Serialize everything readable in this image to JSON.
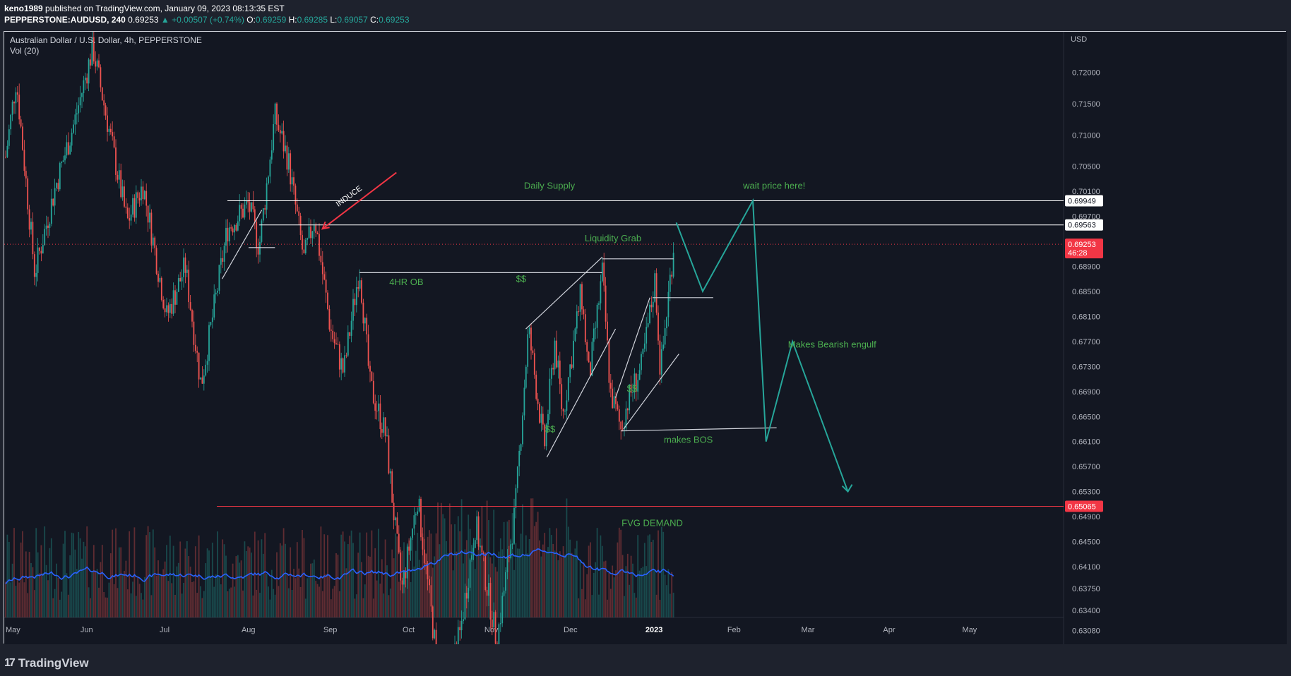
{
  "header": {
    "published_by": "keno1989",
    "published_text": "published on TradingView.com, January 09, 2023 08:13:35 EST",
    "symbol": "PEPPERSTONE:AUDUSD, 240",
    "last": "0.69253",
    "change": "▲ +0.00507 (+0.74%)",
    "o_label": "O:",
    "o_val": "0.69259",
    "h_label": "H:",
    "h_val": "0.69285",
    "l_label": "L:",
    "l_val": "0.69057",
    "c_label": "C:",
    "c_val": "0.69253"
  },
  "footer": {
    "brand": "TradingView",
    "logo": "17"
  },
  "chart_data": {
    "type": "candlestick",
    "title": "Australian Dollar / U.S. Dollar, 4h, PEPPERSTONE",
    "indicator": "Vol (20)",
    "currency": "USD",
    "ylim": [
      0.6295,
      0.7265
    ],
    "y_ticks": [
      "0.72000",
      "0.71500",
      "0.71000",
      "0.70500",
      "0.70100",
      "0.69700",
      "0.69300",
      "0.68900",
      "0.68500",
      "0.68100",
      "0.67700",
      "0.67300",
      "0.66900",
      "0.66500",
      "0.66100",
      "0.65700",
      "0.65300",
      "0.64900",
      "0.64500",
      "0.64100",
      "0.63750",
      "0.63400",
      "0.63080"
    ],
    "x_ticks": [
      "May",
      "Jun",
      "Jul",
      "Aug",
      "Sep",
      "Oct",
      "Nov",
      "Dec",
      "2023",
      "Feb",
      "Mar",
      "Apr",
      "May"
    ],
    "price_path": [
      {
        "date": "2022-05-01",
        "price": 0.7065
      },
      {
        "date": "2022-05-05",
        "price": 0.719
      },
      {
        "date": "2022-05-12",
        "price": 0.688
      },
      {
        "date": "2022-05-20",
        "price": 0.702
      },
      {
        "date": "2022-05-27",
        "price": 0.712
      },
      {
        "date": "2022-06-03",
        "price": 0.724
      },
      {
        "date": "2022-06-10",
        "price": 0.709
      },
      {
        "date": "2022-06-16",
        "price": 0.696
      },
      {
        "date": "2022-06-22",
        "price": 0.702
      },
      {
        "date": "2022-07-01",
        "price": 0.681
      },
      {
        "date": "2022-07-08",
        "price": 0.689
      },
      {
        "date": "2022-07-14",
        "price": 0.67
      },
      {
        "date": "2022-07-24",
        "price": 0.695
      },
      {
        "date": "2022-08-01",
        "price": 0.699
      },
      {
        "date": "2022-08-05",
        "price": 0.692
      },
      {
        "date": "2022-08-11",
        "price": 0.713
      },
      {
        "date": "2022-08-16",
        "price": 0.706
      },
      {
        "date": "2022-08-22",
        "price": 0.69
      },
      {
        "date": "2022-08-26",
        "price": 0.697
      },
      {
        "date": "2022-09-01",
        "price": 0.679
      },
      {
        "date": "2022-09-06",
        "price": 0.672
      },
      {
        "date": "2022-09-12",
        "price": 0.689
      },
      {
        "date": "2022-09-16",
        "price": 0.67
      },
      {
        "date": "2022-09-22",
        "price": 0.662
      },
      {
        "date": "2022-09-28",
        "price": 0.637
      },
      {
        "date": "2022-10-04",
        "price": 0.652
      },
      {
        "date": "2022-10-13",
        "price": 0.62
      },
      {
        "date": "2022-10-20",
        "price": 0.63
      },
      {
        "date": "2022-10-26",
        "price": 0.648
      },
      {
        "date": "2022-11-03",
        "price": 0.629
      },
      {
        "date": "2022-11-10",
        "price": 0.65
      },
      {
        "date": "2022-11-15",
        "price": 0.679
      },
      {
        "date": "2022-11-21",
        "price": 0.66
      },
      {
        "date": "2022-11-25",
        "price": 0.677
      },
      {
        "date": "2022-11-28",
        "price": 0.665
      },
      {
        "date": "2022-12-05",
        "price": 0.685
      },
      {
        "date": "2022-12-08",
        "price": 0.671
      },
      {
        "date": "2022-12-13",
        "price": 0.688
      },
      {
        "date": "2022-12-16",
        "price": 0.669
      },
      {
        "date": "2022-12-20",
        "price": 0.663
      },
      {
        "date": "2022-12-23",
        "price": 0.668
      },
      {
        "date": "2022-12-28",
        "price": 0.673
      },
      {
        "date": "2023-01-02",
        "price": 0.687
      },
      {
        "date": "2023-01-04",
        "price": 0.672
      },
      {
        "date": "2023-01-09",
        "price": 0.6925
      }
    ],
    "horizontal_levels": [
      {
        "label": "0.69949",
        "price": 0.69949,
        "color": "#ffffff"
      },
      {
        "label": "0.69563",
        "price": 0.69563,
        "color": "#ffffff"
      },
      {
        "label": "0.65065",
        "price": 0.65065,
        "color": "#f23645"
      }
    ],
    "last_price": {
      "label": "0.69253",
      "countdown": "46:28",
      "price": 0.69253,
      "color": "#f23645"
    },
    "annotations": [
      {
        "text": "Daily Supply",
        "color": "#4caf50"
      },
      {
        "text": "wait price here!",
        "color": "#4caf50"
      },
      {
        "text": "Liquidity Grab",
        "color": "#4caf50"
      },
      {
        "text": "4HR OB",
        "color": "#4caf50"
      },
      {
        "text": "$$",
        "color": "#4caf50"
      },
      {
        "text": "$$",
        "color": "#4caf50"
      },
      {
        "text": "$$",
        "color": "#4caf50"
      },
      {
        "text": "Makes Bearish engulf",
        "color": "#4caf50"
      },
      {
        "text": "makes BOS",
        "color": "#4caf50"
      },
      {
        "text": "FVG DEMAND",
        "color": "#4caf50"
      },
      {
        "text": "INDUCE",
        "color": "#ffffff"
      }
    ],
    "projection_path": [
      {
        "date": "2023-01-10",
        "price": 0.696
      },
      {
        "date": "2023-01-20",
        "price": 0.685
      },
      {
        "date": "2023-02-08",
        "price": 0.6995
      },
      {
        "date": "2023-02-13",
        "price": 0.661
      },
      {
        "date": "2023-02-23",
        "price": 0.677
      },
      {
        "date": "2023-03-16",
        "price": 0.653
      }
    ],
    "colors": {
      "up": "#26a69a",
      "down": "#ef5350",
      "vol_ma": "#2962ff",
      "bg": "#131722",
      "projection": "#26a69a"
    }
  }
}
